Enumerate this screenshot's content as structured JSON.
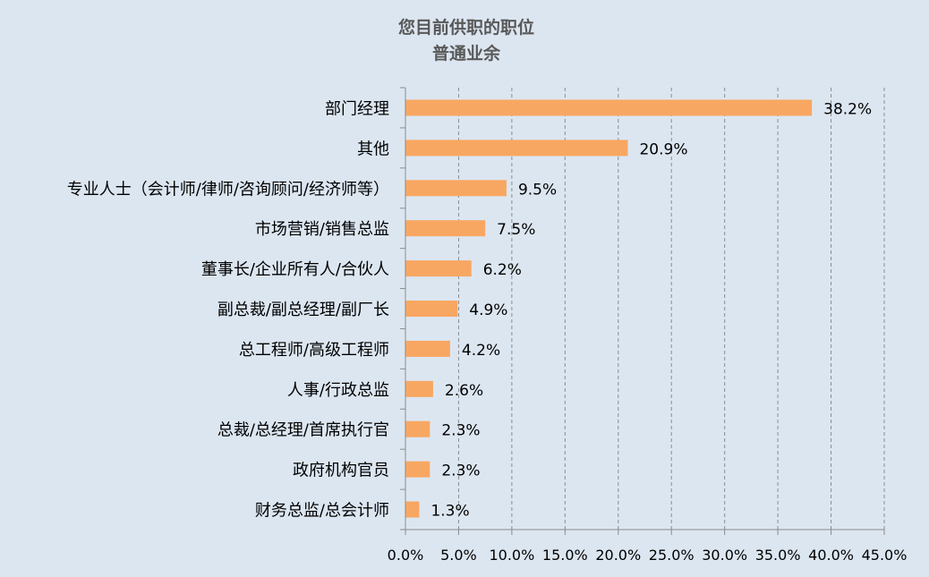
{
  "chart_data": {
    "type": "bar",
    "orientation": "horizontal",
    "title": "您目前供职的职位",
    "subtitle": "普通业余",
    "categories": [
      "部门经理",
      "其他",
      "专业人士（会计师/律师/咨询顾问/经济师等）",
      "市场营销/销售总监",
      "董事长/企业所有人/合伙人",
      "副总裁/副总经理/副厂长",
      "总工程师/高级工程师",
      "人事/行政总监",
      "总裁/总经理/首席执行官",
      "政府机构官员",
      "财务总监/总会计师"
    ],
    "values": [
      38.2,
      20.9,
      9.5,
      7.5,
      6.2,
      4.9,
      4.2,
      2.6,
      2.3,
      2.3,
      1.3
    ],
    "value_labels": [
      "38.2%",
      "20.9%",
      "9.5%",
      "7.5%",
      "6.2%",
      "4.9%",
      "4.2%",
      "2.6%",
      "2.3%",
      "2.3%",
      "1.3%"
    ],
    "x_ticks": [
      "0.0%",
      "5.0%",
      "10.0%",
      "15.0%",
      "20.0%",
      "25.0%",
      "30.0%",
      "35.0%",
      "40.0%",
      "45.0%"
    ],
    "xlim": [
      0,
      45
    ],
    "grid": "vertical dashed",
    "bar_color": "#f8a762"
  }
}
